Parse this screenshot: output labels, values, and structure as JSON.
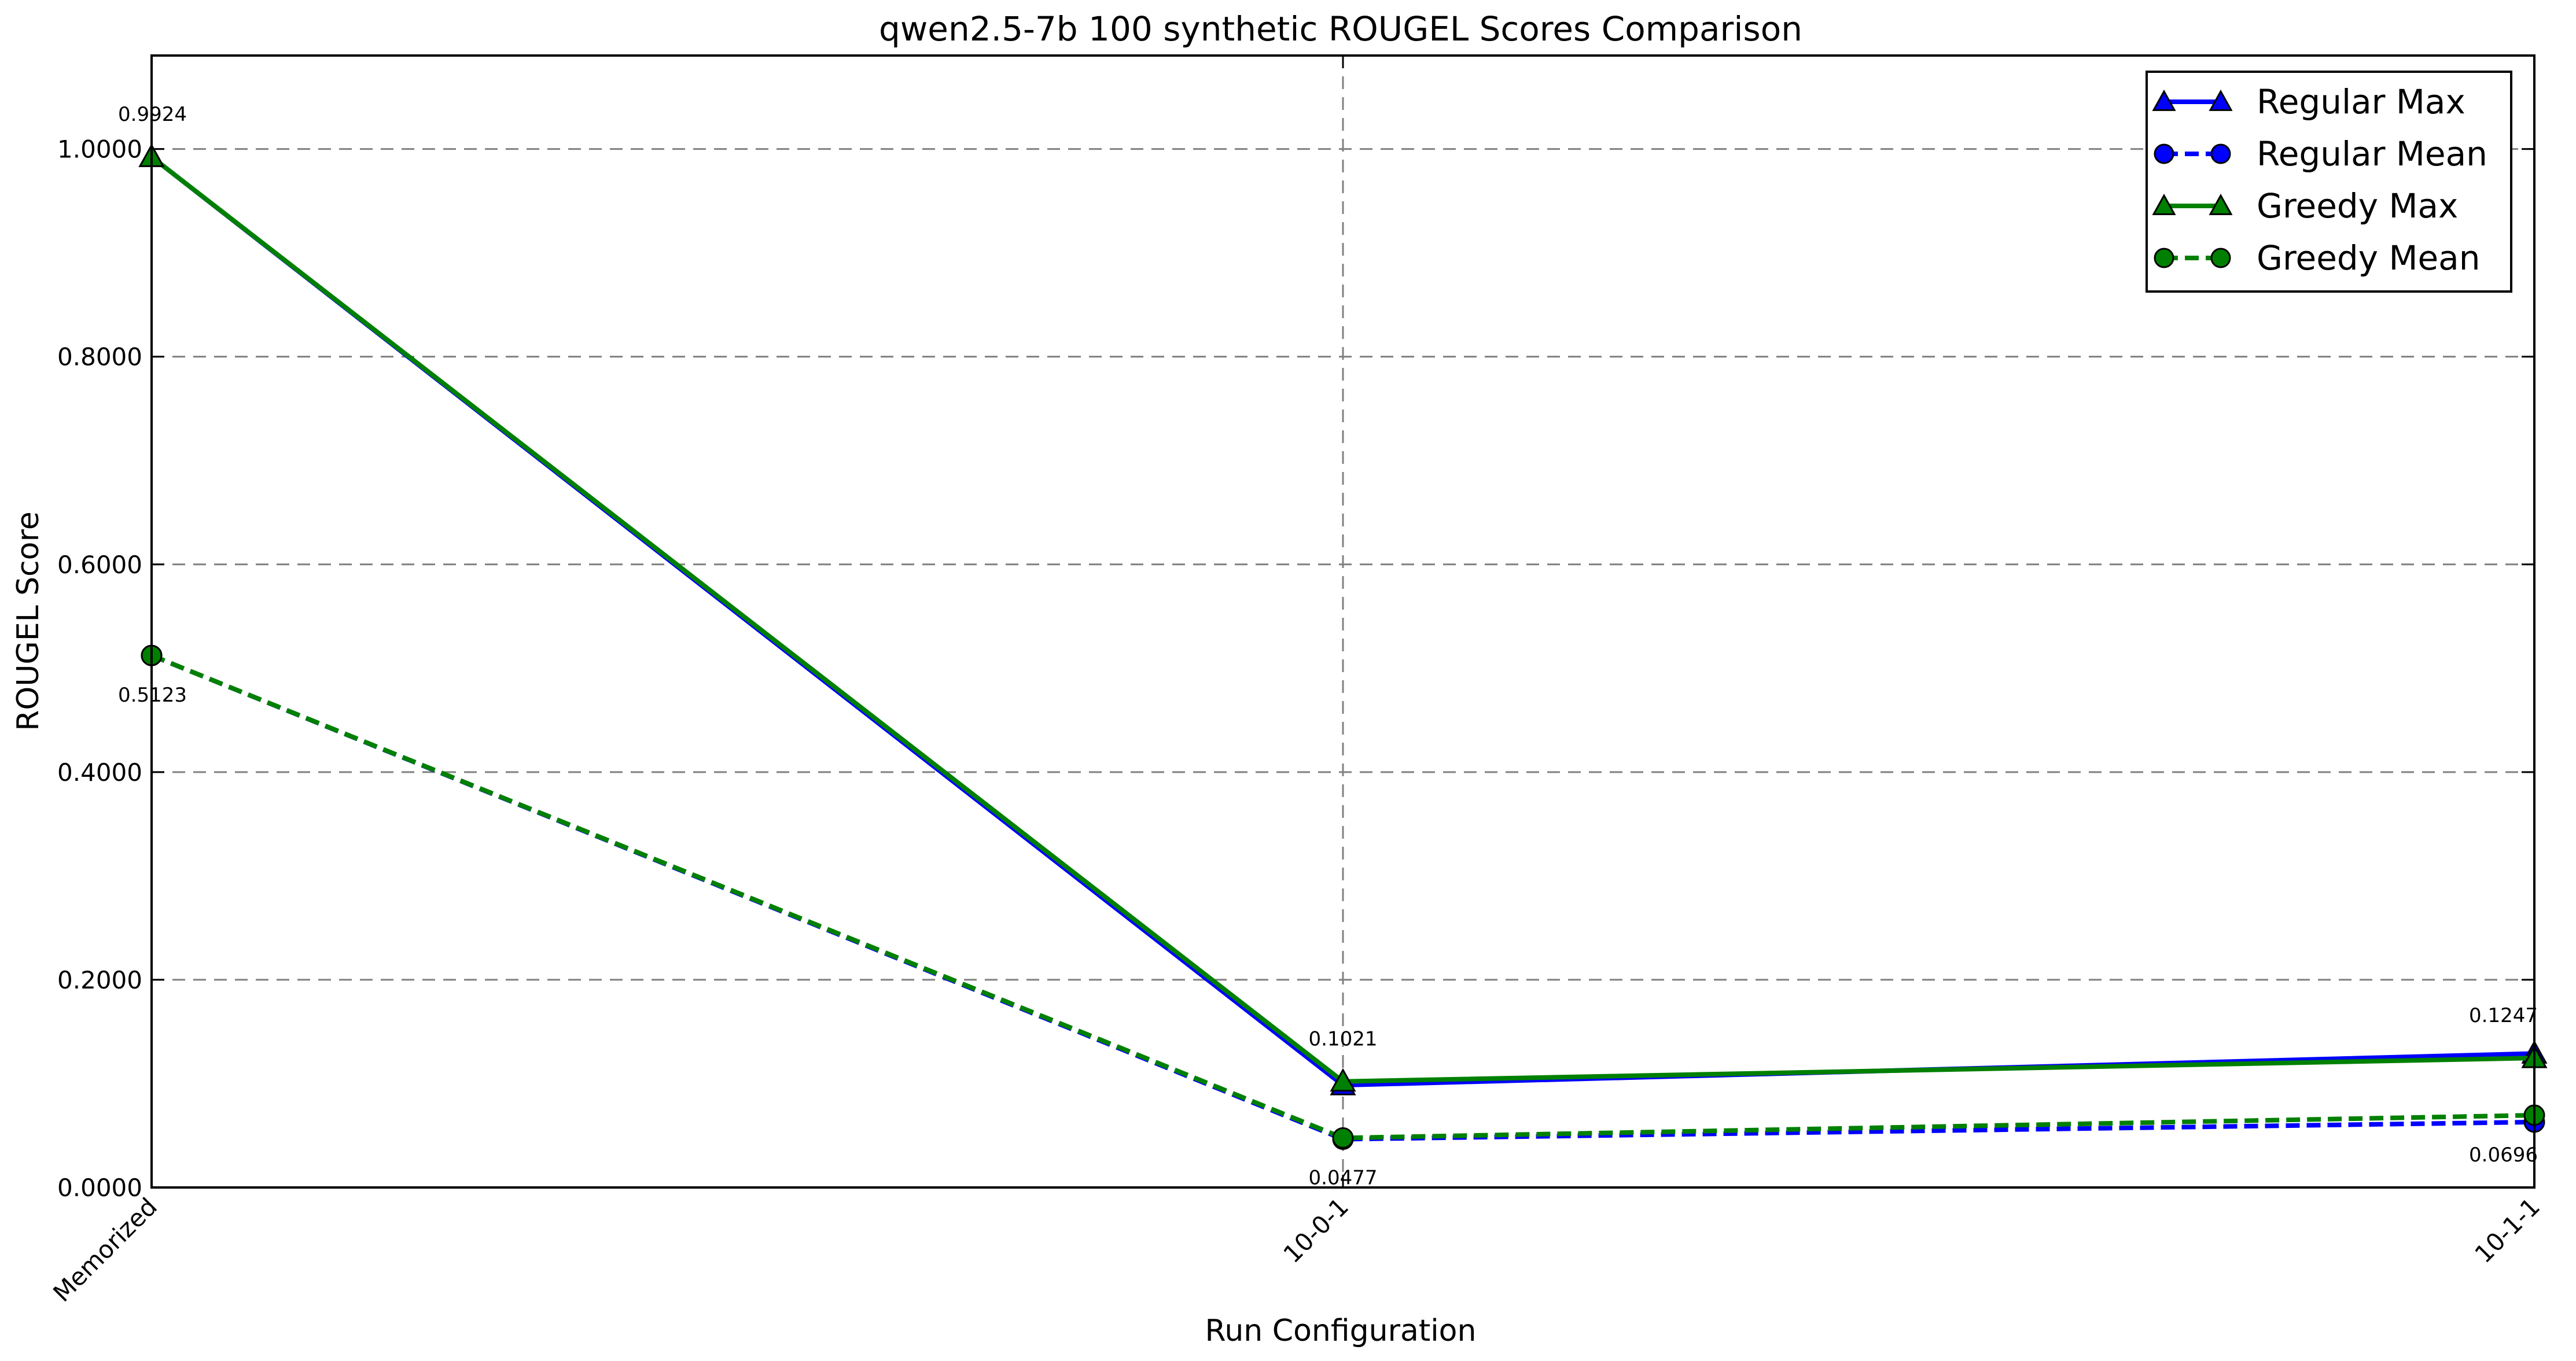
{
  "chart_data": {
    "type": "line",
    "title": "qwen2.5-7b 100 synthetic ROUGEL Scores Comparison",
    "xlabel": "Run Configuration",
    "ylabel": "ROUGEL Score",
    "categories": [
      "Memorized",
      "10-0-1",
      "10-1-1"
    ],
    "ylim": [
      0,
      1.09
    ],
    "yticks": [
      0,
      0.2,
      0.4,
      0.6,
      0.8,
      1.0
    ],
    "ytick_labels": [
      "0.0000",
      "0.2000",
      "0.4000",
      "0.6000",
      "0.8000",
      "1.0000"
    ],
    "grid": true,
    "legend_position": "top-right",
    "series": [
      {
        "name": "Regular Max",
        "values": [
          0.9924,
          0.0985,
          0.129
        ],
        "color": "#0000ff",
        "style": "solid",
        "marker": "triangle"
      },
      {
        "name": "Regular Mean",
        "values": [
          0.5123,
          0.0465,
          0.063
        ],
        "color": "#0000ff",
        "style": "dashed",
        "marker": "circle"
      },
      {
        "name": "Greedy Max",
        "values": [
          0.9924,
          0.1021,
          0.1247
        ],
        "color": "#008000",
        "style": "solid",
        "marker": "triangle"
      },
      {
        "name": "Greedy Mean",
        "values": [
          0.5123,
          0.0477,
          0.0696
        ],
        "color": "#008000",
        "style": "dashed",
        "marker": "circle"
      }
    ],
    "annotations": [
      {
        "category": "Memorized",
        "y": 0.9924,
        "text": "0.9924",
        "placement": "above"
      },
      {
        "category": "Memorized",
        "y": 0.5123,
        "text": "0.5123",
        "placement": "below"
      },
      {
        "category": "10-0-1",
        "y": 0.1021,
        "text": "0.1021",
        "placement": "above"
      },
      {
        "category": "10-0-1",
        "y": 0.0477,
        "text": "0.0477",
        "placement": "below"
      },
      {
        "category": "10-1-1",
        "y": 0.1247,
        "text": "0.1247",
        "placement": "above"
      },
      {
        "category": "10-1-1",
        "y": 0.0696,
        "text": "0.0696",
        "placement": "below"
      }
    ]
  }
}
